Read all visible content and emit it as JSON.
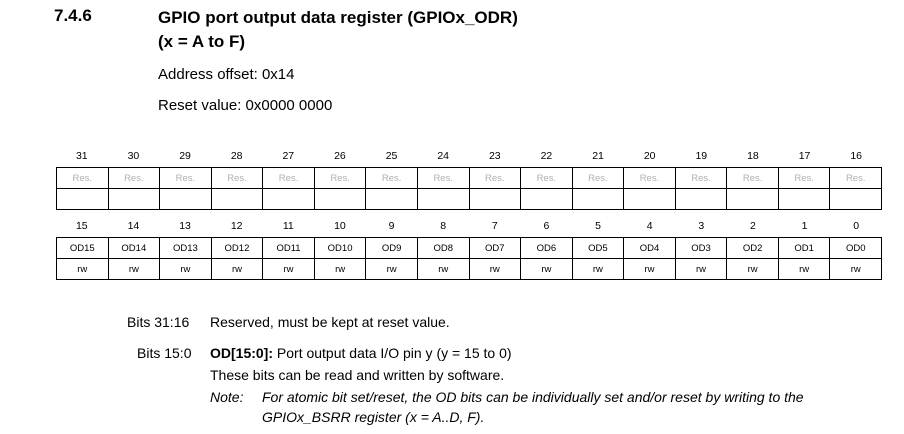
{
  "section": {
    "number": "7.4.6",
    "title_line1": "GPIO port output data register (GPIOx_ODR)",
    "title_line2": "(x = A to F)"
  },
  "address_offset": "Address offset: 0x14",
  "reset_value": "Reset value: 0x0000 0000",
  "upper": {
    "bit_numbers": [
      "31",
      "30",
      "29",
      "28",
      "27",
      "26",
      "25",
      "24",
      "23",
      "22",
      "21",
      "20",
      "19",
      "18",
      "17",
      "16"
    ],
    "cells": [
      "Res.",
      "Res.",
      "Res.",
      "Res.",
      "Res.",
      "Res.",
      "Res.",
      "Res.",
      "Res.",
      "Res.",
      "Res.",
      "Res.",
      "Res.",
      "Res.",
      "Res.",
      "Res."
    ]
  },
  "lower": {
    "bit_numbers": [
      "15",
      "14",
      "13",
      "12",
      "11",
      "10",
      "9",
      "8",
      "7",
      "6",
      "5",
      "4",
      "3",
      "2",
      "1",
      "0"
    ],
    "fields": [
      "OD15",
      "OD14",
      "OD13",
      "OD12",
      "OD11",
      "OD10",
      "OD9",
      "OD8",
      "OD7",
      "OD6",
      "OD5",
      "OD4",
      "OD3",
      "OD2",
      "OD1",
      "OD0"
    ],
    "access": [
      "rw",
      "rw",
      "rw",
      "rw",
      "rw",
      "rw",
      "rw",
      "rw",
      "rw",
      "rw",
      "rw",
      "rw",
      "rw",
      "rw",
      "rw",
      "rw"
    ]
  },
  "bits_high": {
    "label": "Bits 31:16",
    "text": "Reserved, must be kept at reset value."
  },
  "bits_low": {
    "label": "Bits 15:0",
    "field": "OD[15:0]:",
    "text": " Port output data I/O pin y (y = 15 to 0)",
    "line2": "These bits can be read and written by software.",
    "note_label": "Note:",
    "note_line1": "For atomic bit set/reset, the OD bits can be individually set and/or reset by writing to the",
    "note_line2": "GPIOx_BSRR register (x = A..D, F)."
  }
}
